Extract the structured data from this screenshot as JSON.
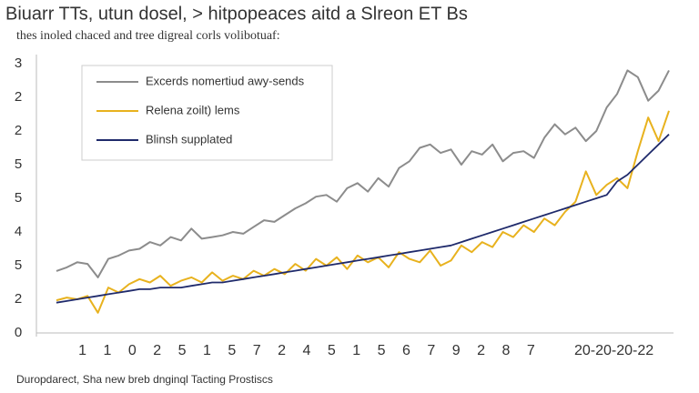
{
  "chart_data": {
    "type": "line",
    "title": "Biuarr TTs, utun dosel, > hitpopeaces aitd a Slreon ET Bs",
    "subtitle": "thes inoled chaced and tree digreal corls volibotuaf:",
    "footer": "Duropdarect, Sha new breb dnginql Tacting Prostiscs",
    "legend": "top-left",
    "ylim": [
      0,
      8
    ],
    "yticks": [
      {
        "value": 0,
        "label": "0"
      },
      {
        "value": 1,
        "label": "2"
      },
      {
        "value": 2,
        "label": "5"
      },
      {
        "value": 3,
        "label": "4"
      },
      {
        "value": 4,
        "label": "5"
      },
      {
        "value": 5,
        "label": "5"
      },
      {
        "value": 6,
        "label": "2"
      },
      {
        "value": 7,
        "label": "2"
      },
      {
        "value": 8,
        "label": "3"
      }
    ],
    "xlim": [
      0,
      59
    ],
    "xticks": [
      {
        "value": 2.5,
        "label": "1"
      },
      {
        "value": 4.9,
        "label": "1"
      },
      {
        "value": 7.3,
        "label": "0"
      },
      {
        "value": 9.7,
        "label": "2"
      },
      {
        "value": 12.1,
        "label": "5"
      },
      {
        "value": 14.5,
        "label": "1"
      },
      {
        "value": 16.9,
        "label": "5"
      },
      {
        "value": 19.3,
        "label": "7"
      },
      {
        "value": 21.7,
        "label": "2"
      },
      {
        "value": 24.1,
        "label": "4"
      },
      {
        "value": 26.5,
        "label": "5"
      },
      {
        "value": 28.9,
        "label": "1"
      },
      {
        "value": 31.3,
        "label": "5"
      },
      {
        "value": 33.7,
        "label": "6"
      },
      {
        "value": 36.1,
        "label": "7"
      },
      {
        "value": 38.5,
        "label": "9"
      },
      {
        "value": 40.9,
        "label": "2"
      },
      {
        "value": 43.3,
        "label": "8"
      },
      {
        "value": 45.7,
        "label": "7"
      },
      {
        "value": 53.7,
        "label": "20-20-20-22"
      }
    ],
    "x": [
      0,
      1,
      2,
      3,
      4,
      5,
      6,
      7,
      8,
      9,
      10,
      11,
      12,
      13,
      14,
      15,
      16,
      17,
      18,
      19,
      20,
      21,
      22,
      23,
      24,
      25,
      26,
      27,
      28,
      29,
      30,
      31,
      32,
      33,
      34,
      35,
      36,
      37,
      38,
      39,
      40,
      41,
      42,
      43,
      44,
      45,
      46,
      47,
      48,
      49,
      50,
      51,
      52,
      53,
      54,
      55,
      56,
      57,
      58,
      59
    ],
    "series": [
      {
        "name": "Excerds nomertiud awy-sends",
        "color": "#8c8c8c",
        "values": [
          1.84,
          1.95,
          2.1,
          2.05,
          1.65,
          2.2,
          2.3,
          2.45,
          2.5,
          2.7,
          2.6,
          2.85,
          2.75,
          3.1,
          2.8,
          2.85,
          2.9,
          3.0,
          2.95,
          3.15,
          3.35,
          3.3,
          3.5,
          3.7,
          3.85,
          4.05,
          4.1,
          3.9,
          4.3,
          4.45,
          4.2,
          4.6,
          4.35,
          4.9,
          5.1,
          5.5,
          5.6,
          5.35,
          5.45,
          5.0,
          5.4,
          5.3,
          5.6,
          5.1,
          5.35,
          5.4,
          5.2,
          5.8,
          6.2,
          5.9,
          6.1,
          5.7,
          6.0,
          6.7,
          7.1,
          7.8,
          7.6,
          6.9,
          7.2,
          7.8
        ]
      },
      {
        "name": "Relena zoilt) lems",
        "color": "#e8b21e",
        "values": [
          0.97,
          1.05,
          1.0,
          1.1,
          0.6,
          1.35,
          1.2,
          1.45,
          1.6,
          1.5,
          1.7,
          1.4,
          1.55,
          1.65,
          1.5,
          1.8,
          1.55,
          1.7,
          1.6,
          1.85,
          1.7,
          1.9,
          1.75,
          2.05,
          1.85,
          2.2,
          2.0,
          2.25,
          1.9,
          2.3,
          2.1,
          2.25,
          1.95,
          2.4,
          2.2,
          2.1,
          2.45,
          2.0,
          2.15,
          2.6,
          2.4,
          2.7,
          2.55,
          3.0,
          2.85,
          3.2,
          3.0,
          3.4,
          3.2,
          3.6,
          3.9,
          4.8,
          4.1,
          4.4,
          4.6,
          4.3,
          5.4,
          6.4,
          5.7,
          6.6
        ]
      },
      {
        "name": "Blinsh supplated",
        "color": "#1f2a6b",
        "values": [
          0.9,
          0.95,
          1.0,
          1.05,
          1.1,
          1.15,
          1.2,
          1.25,
          1.3,
          1.3,
          1.35,
          1.35,
          1.35,
          1.4,
          1.45,
          1.5,
          1.5,
          1.55,
          1.6,
          1.65,
          1.7,
          1.75,
          1.8,
          1.85,
          1.9,
          1.95,
          2.0,
          2.05,
          2.1,
          2.15,
          2.2,
          2.25,
          2.3,
          2.35,
          2.4,
          2.45,
          2.5,
          2.55,
          2.6,
          2.7,
          2.8,
          2.9,
          3.0,
          3.1,
          3.2,
          3.3,
          3.4,
          3.5,
          3.6,
          3.7,
          3.8,
          3.9,
          4.0,
          4.1,
          4.5,
          4.7,
          5.0,
          5.3,
          5.6,
          5.9
        ]
      }
    ]
  }
}
